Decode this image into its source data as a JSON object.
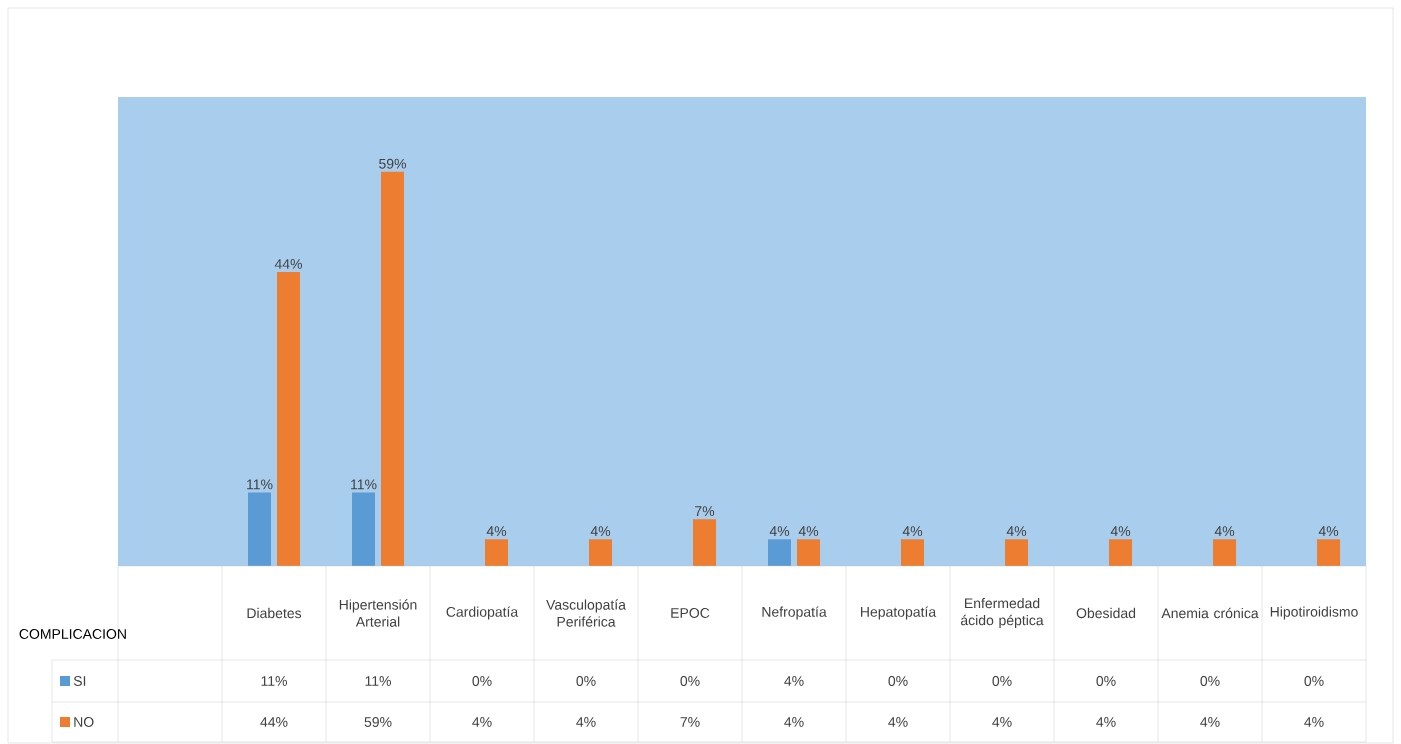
{
  "chart_data": {
    "type": "bar",
    "xlabel": "COMPLICACION",
    "categories": [
      null,
      "Diabetes",
      "Hipertensión Arterial",
      "Cardiopatía",
      "Vasculopatía Periférica",
      "EPOC",
      "Nefropatía",
      "Hepatopatía",
      "Enfermedad ácido péptica",
      "Obesidad",
      "Anemia crónica",
      "Hipotiroidismo"
    ],
    "series": [
      {
        "name": "SI",
        "color": "#5b9bd5",
        "values": [
          null,
          11,
          11,
          0,
          0,
          0,
          4,
          0,
          0,
          0,
          0,
          0
        ],
        "value_labels": [
          null,
          "11%",
          "11%",
          "0%",
          "0%",
          "0%",
          "4%",
          "0%",
          "0%",
          "0%",
          "0%",
          "0%"
        ]
      },
      {
        "name": "NO",
        "color": "#ed7d31",
        "values": [
          null,
          44,
          59,
          4,
          4,
          7,
          4,
          4,
          4,
          4,
          4,
          4
        ],
        "value_labels": [
          null,
          "44%",
          "59%",
          "4%",
          "4%",
          "7%",
          "4%",
          "4%",
          "4%",
          "4%",
          "4%",
          "4%"
        ]
      }
    ],
    "legend": "bottom"
  }
}
